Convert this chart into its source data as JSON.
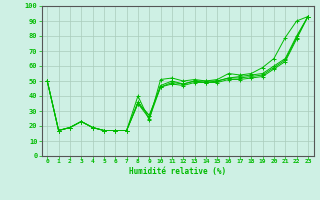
{
  "x": [
    0,
    1,
    2,
    3,
    4,
    5,
    6,
    7,
    8,
    9,
    10,
    11,
    12,
    13,
    14,
    15,
    16,
    17,
    18,
    19,
    20,
    21,
    22,
    23
  ],
  "series": [
    [
      50,
      17,
      19,
      23,
      19,
      17,
      17,
      17,
      40,
      24,
      51,
      52,
      50,
      51,
      50,
      51,
      55,
      54,
      55,
      59,
      65,
      79,
      90,
      93
    ],
    [
      50,
      17,
      19,
      23,
      19,
      17,
      17,
      17,
      36,
      27,
      47,
      50,
      48,
      50,
      50,
      50,
      52,
      53,
      54,
      55,
      60,
      65,
      80,
      93
    ],
    [
      50,
      17,
      19,
      23,
      19,
      17,
      17,
      17,
      35,
      27,
      46,
      49,
      48,
      50,
      49,
      50,
      52,
      52,
      53,
      54,
      59,
      64,
      79,
      93
    ],
    [
      50,
      17,
      19,
      23,
      19,
      17,
      17,
      17,
      35,
      25,
      46,
      48,
      47,
      49,
      49,
      49,
      51,
      51,
      52,
      53,
      58,
      63,
      78,
      93
    ]
  ],
  "line_color": "#00bb00",
  "bg_color": "#cef0e4",
  "grid_color": "#aaccbb",
  "xlabel": "Humidité relative (%)",
  "ylim": [
    0,
    100
  ],
  "xlim": [
    -0.5,
    23.5
  ],
  "yticks": [
    0,
    10,
    20,
    30,
    40,
    50,
    60,
    70,
    80,
    90,
    100
  ],
  "xticks": [
    0,
    1,
    2,
    3,
    4,
    5,
    6,
    7,
    8,
    9,
    10,
    11,
    12,
    13,
    14,
    15,
    16,
    17,
    18,
    19,
    20,
    21,
    22,
    23
  ],
  "xtick_labels": [
    "0",
    "1",
    "2",
    "3",
    "4",
    "5",
    "6",
    "7",
    "8",
    "9",
    "10",
    "11",
    "12",
    "13",
    "14",
    "15",
    "16",
    "17",
    "18",
    "19",
    "20",
    "21",
    "22",
    "23"
  ]
}
